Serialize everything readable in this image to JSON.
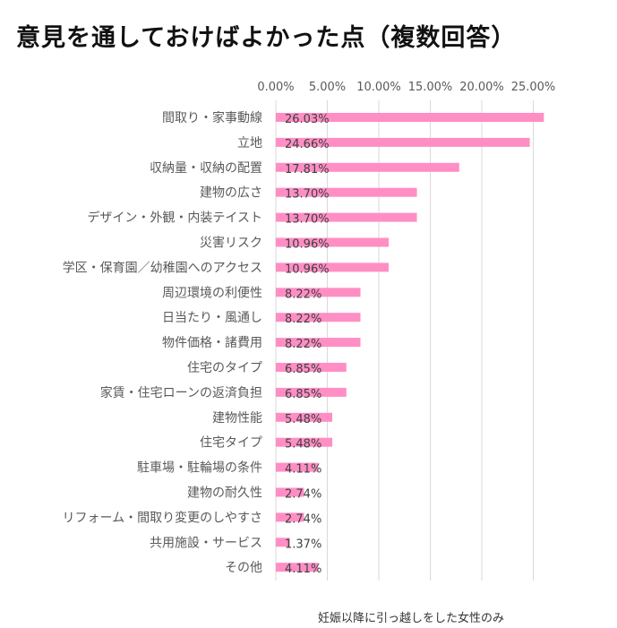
{
  "title": "意見を通しておけばよかった点（複数回答）",
  "footnote": "妊娠以降に引っ越しをした女性のみ",
  "chart_data": {
    "type": "bar",
    "orientation": "horizontal",
    "title": "意見を通しておけばよかった点（複数回答）",
    "categories": [
      "間取り・家事動線",
      "立地",
      "収納量・収納の配置",
      "建物の広さ",
      "デザイン・外観・内装テイスト",
      "災害リスク",
      "学区・保育園／幼稚園へのアクセス",
      "周辺環境の利便性",
      "日当たり・風通し",
      "物件価格・諸費用",
      "住宅のタイプ",
      "家賃・住宅ローンの返済負担",
      "建物性能",
      "住宅タイプ",
      "駐車場・駐輪場の条件",
      "建物の耐久性",
      "リフォーム・間取り変更のしやすさ",
      "共用施設・サービス",
      "その他"
    ],
    "values": [
      26.03,
      24.66,
      17.81,
      13.7,
      13.7,
      10.96,
      10.96,
      8.22,
      8.22,
      8.22,
      6.85,
      6.85,
      5.48,
      5.48,
      4.11,
      2.74,
      2.74,
      1.37,
      4.11
    ],
    "data_labels": [
      "26.03%",
      "24.66%",
      "17.81%",
      "13.70%",
      "13.70%",
      "10.96%",
      "10.96%",
      "8.22%",
      "8.22%",
      "8.22%",
      "6.85%",
      "6.85%",
      "5.48%",
      "5.48%",
      "4.11%",
      "2.74%",
      "2.74%",
      "1.37%",
      "4.11%"
    ],
    "xticks": [
      "0.00%",
      "5.00%",
      "10.00%",
      "15.00%",
      "20.00%",
      "25.00%"
    ],
    "xtick_values": [
      0,
      5,
      10,
      15,
      20,
      25
    ],
    "xlim": [
      0,
      25
    ],
    "xaxis_position": "top",
    "grid": true,
    "bar_color": "#ff8ec4",
    "grid_color": "#d9d9d9",
    "label_color": "#595959"
  }
}
